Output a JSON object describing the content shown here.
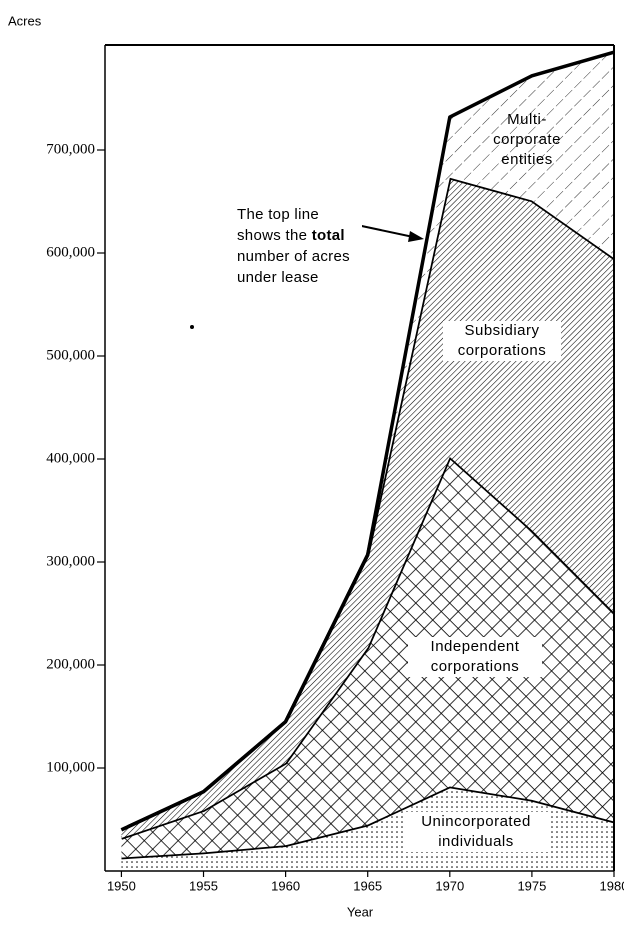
{
  "chart_data": {
    "type": "stacked-area",
    "ylabel": "Acres",
    "xlabel": "Year",
    "annotation": {
      "before": "The top line shows the",
      "bold": "total",
      "after": "number of acres under lease"
    },
    "x": [
      1950,
      1955,
      1960,
      1965,
      1970,
      1975,
      1980
    ],
    "xlim": [
      1949,
      1980
    ],
    "xticks": [
      1950,
      1955,
      1960,
      1965,
      1970,
      1975,
      1980
    ],
    "ylim": [
      0,
      800000
    ],
    "yticks": [
      {
        "value": 100000,
        "label": "100,000"
      },
      {
        "value": 200000,
        "label": "200,000"
      },
      {
        "value": 300000,
        "label": "300,000"
      },
      {
        "value": 400000,
        "label": "400,000"
      },
      {
        "value": 500000,
        "label": "500,000"
      },
      {
        "value": 600000,
        "label": "600,000"
      },
      {
        "value": 700000,
        "label": "700,000"
      }
    ],
    "color": "#000000",
    "series": [
      {
        "name": "Unincorporated individuals",
        "pattern": "dots",
        "values": [
          13000,
          18000,
          25000,
          45000,
          82000,
          69000,
          48000
        ]
      },
      {
        "name": "Independent corporations",
        "pattern": "crosshatch",
        "values": [
          19000,
          41000,
          80000,
          172000,
          320000,
          262000,
          203000
        ]
      },
      {
        "name": "Subsidiary corporations",
        "pattern": "hatch",
        "values": [
          8000,
          18000,
          40000,
          90000,
          271000,
          320000,
          344000
        ]
      },
      {
        "name": "Multi-corporate entities",
        "pattern": "dashed-hatch",
        "values": [
          0,
          0,
          0,
          0,
          59000,
          121000,
          200000
        ]
      }
    ]
  }
}
